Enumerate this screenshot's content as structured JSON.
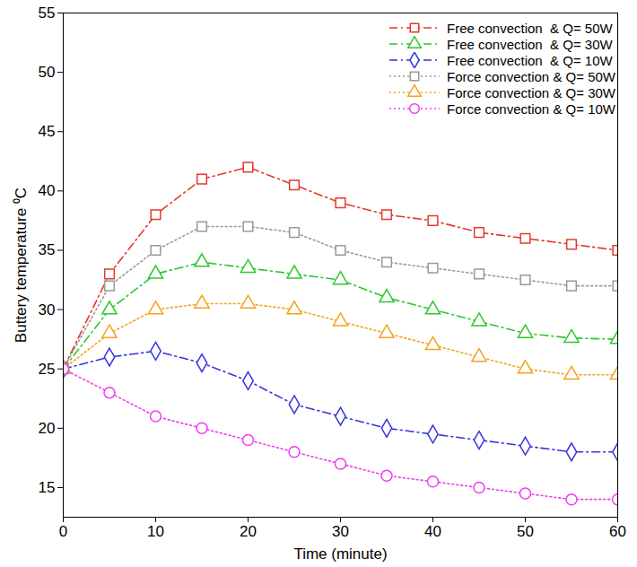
{
  "chart_data": {
    "type": "line",
    "x_label": "Time (minute)",
    "y_label": "Buttery temperature ⁰C",
    "x": [
      0,
      5,
      10,
      15,
      20,
      25,
      30,
      35,
      40,
      45,
      50,
      55,
      60
    ],
    "series": [
      {
        "name": "Free convection  & Q= 50W",
        "color": "#e5392c",
        "marker": "square",
        "line_style": "dashdot",
        "values": [
          25,
          33,
          38,
          41,
          42,
          40.5,
          39,
          38,
          37.5,
          36.5,
          36,
          35.5,
          35
        ]
      },
      {
        "name": "Free convection  & Q= 30W",
        "color": "#2fc62f",
        "marker": "triangle",
        "line_style": "dashdot",
        "values": [
          25,
          30,
          33,
          34,
          33.5,
          33,
          32.5,
          31,
          30,
          29,
          28,
          27.6,
          27.5
        ]
      },
      {
        "name": "Free convection  & Q= 10W",
        "color": "#3535e0",
        "marker": "diamond",
        "line_style": "dashdot",
        "values": [
          25,
          26,
          26.5,
          25.5,
          24,
          22,
          21,
          20,
          19.5,
          19,
          18.5,
          18,
          18
        ]
      },
      {
        "name": "Force convection & Q= 50W",
        "color": "#999999",
        "marker": "square",
        "line_style": "dotted",
        "values": [
          25,
          32,
          35,
          37,
          37,
          36.5,
          35,
          34,
          33.5,
          33,
          32.5,
          32,
          32
        ]
      },
      {
        "name": "Force convection & Q= 30W",
        "color": "#f5a21a",
        "marker": "triangle",
        "line_style": "dotted",
        "values": [
          25,
          28,
          30,
          30.5,
          30.5,
          30,
          29,
          28,
          27,
          26,
          25,
          24.5,
          24.5
        ]
      },
      {
        "name": "Force convection & Q= 10W",
        "color": "#f03cf0",
        "marker": "circle",
        "line_style": "dotted",
        "values": [
          25,
          23,
          21,
          20,
          19,
          18,
          17,
          16,
          15.5,
          15,
          14.5,
          14,
          14
        ]
      }
    ],
    "xlim": [
      0,
      60
    ],
    "ylim": [
      12.5,
      55
    ],
    "xticks": [
      0,
      10,
      20,
      30,
      40,
      50,
      60
    ],
    "yticks": [
      15,
      20,
      25,
      30,
      35,
      40,
      45,
      50,
      55
    ],
    "grid": false,
    "legend": "top-right"
  }
}
